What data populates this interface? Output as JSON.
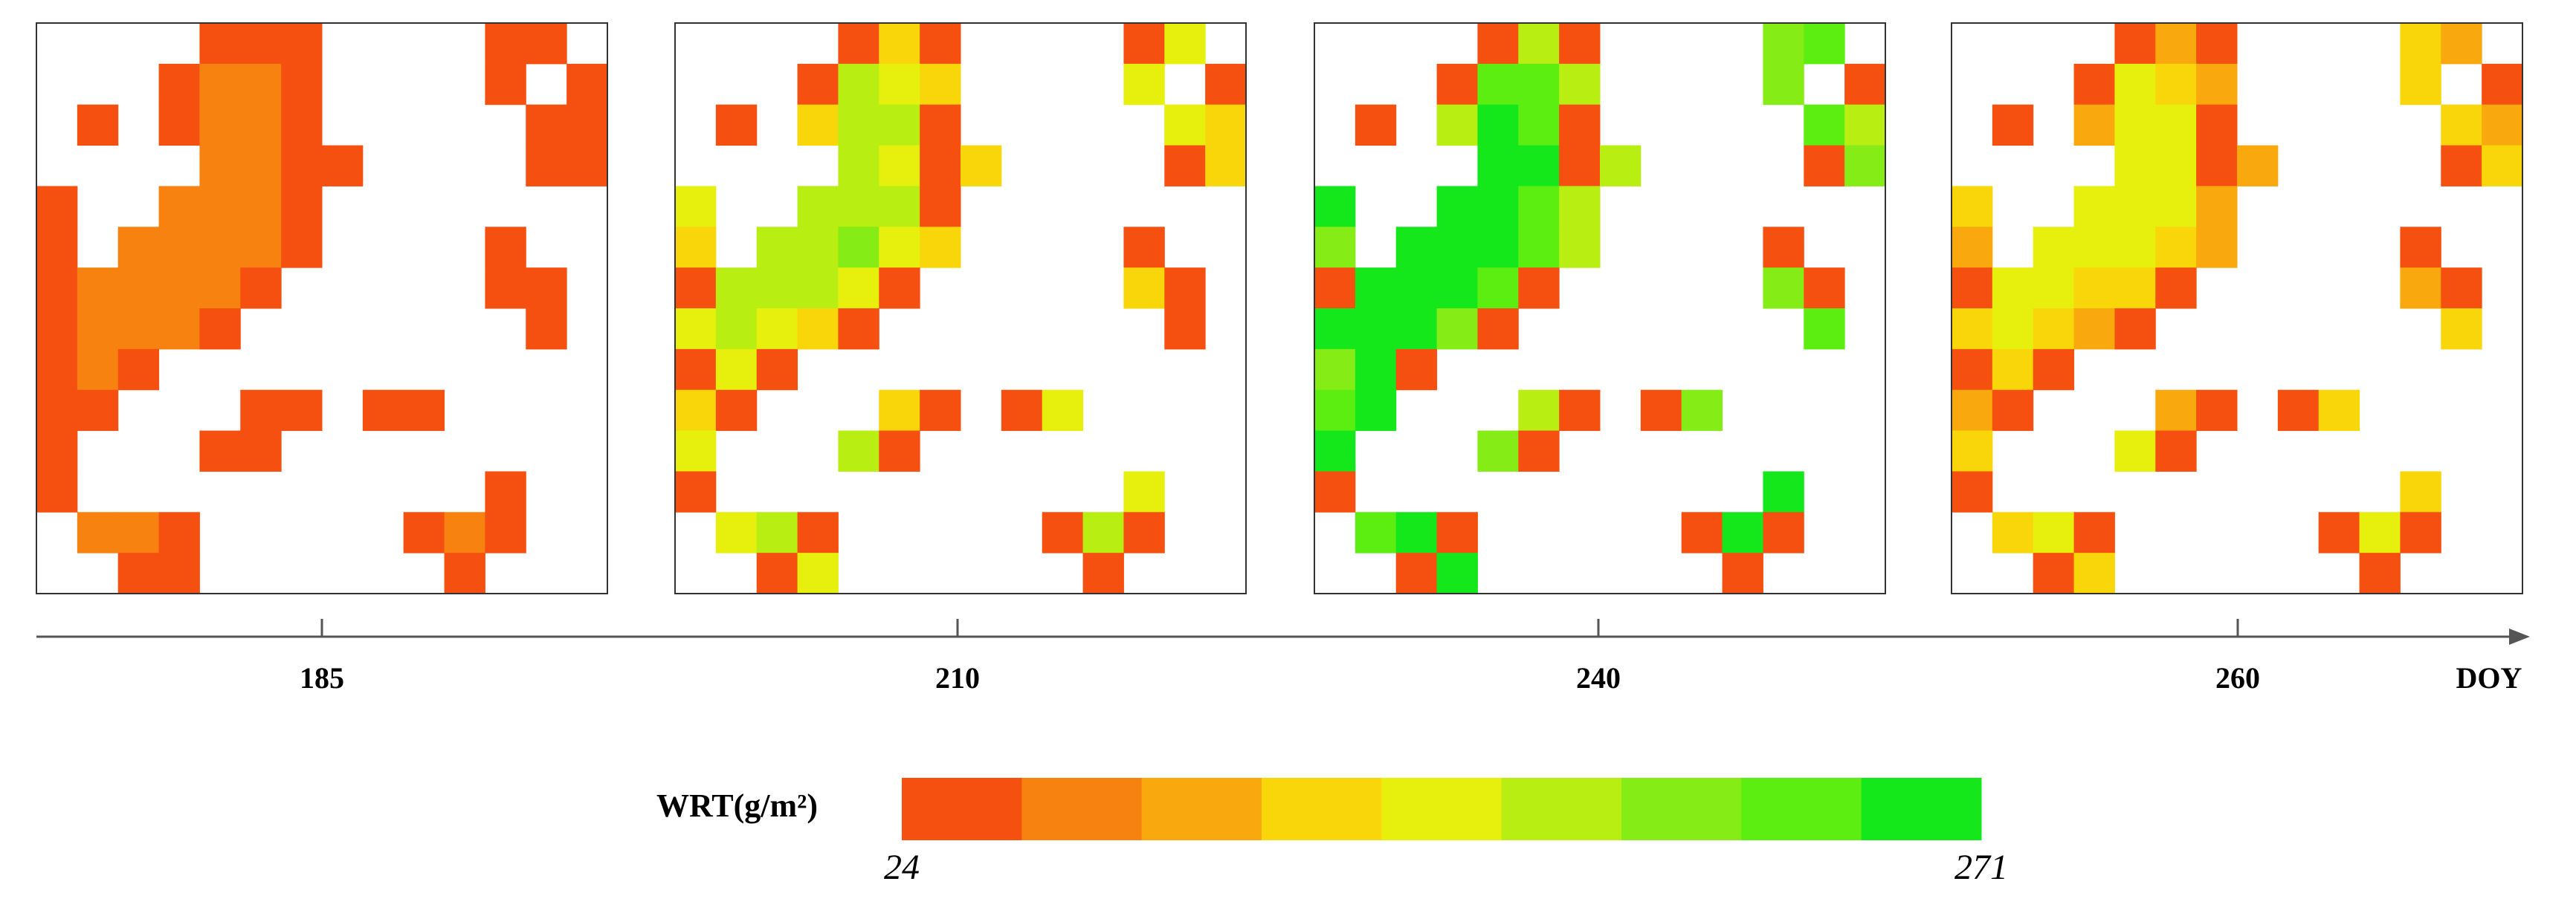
{
  "chart_data": {
    "type": "heatmap-panels",
    "axis_label": "DOY",
    "panels": [
      {
        "doy": 185,
        "cells": [
          [
            null,
            null,
            null,
            null,
            0,
            0,
            0,
            null,
            null,
            null,
            null,
            0,
            0,
            null
          ],
          [
            null,
            null,
            null,
            0,
            1,
            1,
            0,
            null,
            null,
            null,
            null,
            0,
            null,
            0
          ],
          [
            null,
            0,
            null,
            0,
            1,
            1,
            0,
            null,
            null,
            null,
            null,
            null,
            0,
            0
          ],
          [
            null,
            null,
            null,
            null,
            1,
            1,
            0,
            0,
            null,
            null,
            null,
            null,
            0,
            0
          ],
          [
            0,
            null,
            null,
            1,
            1,
            1,
            0,
            null,
            null,
            null,
            null,
            null,
            null,
            null
          ],
          [
            0,
            null,
            1,
            1,
            1,
            1,
            0,
            null,
            null,
            null,
            null,
            0,
            null,
            null
          ],
          [
            0,
            1,
            1,
            1,
            1,
            0,
            null,
            null,
            null,
            null,
            null,
            0,
            0,
            null
          ],
          [
            0,
            1,
            1,
            1,
            0,
            null,
            null,
            null,
            null,
            null,
            null,
            null,
            0,
            null
          ],
          [
            0,
            1,
            0,
            null,
            null,
            null,
            null,
            null,
            null,
            null,
            null,
            null,
            null,
            null
          ],
          [
            0,
            0,
            null,
            null,
            null,
            0,
            0,
            null,
            0,
            0,
            null,
            null,
            null,
            null
          ],
          [
            0,
            null,
            null,
            null,
            0,
            0,
            null,
            null,
            null,
            null,
            null,
            null,
            null,
            null
          ],
          [
            0,
            null,
            null,
            null,
            null,
            null,
            null,
            null,
            null,
            null,
            null,
            0,
            null,
            null
          ],
          [
            null,
            1,
            1,
            0,
            null,
            null,
            null,
            null,
            null,
            0,
            1,
            0,
            null,
            null
          ],
          [
            null,
            null,
            0,
            0,
            null,
            null,
            null,
            null,
            null,
            null,
            0,
            null,
            null,
            null
          ]
        ]
      },
      {
        "doy": 210,
        "cells": [
          [
            null,
            null,
            null,
            null,
            0,
            3,
            0,
            null,
            null,
            null,
            null,
            0,
            4,
            null
          ],
          [
            null,
            null,
            null,
            0,
            5,
            4,
            3,
            null,
            null,
            null,
            null,
            4,
            null,
            0
          ],
          [
            null,
            0,
            null,
            3,
            5,
            5,
            0,
            null,
            null,
            null,
            null,
            null,
            4,
            3
          ],
          [
            null,
            null,
            null,
            null,
            5,
            4,
            0,
            3,
            null,
            null,
            null,
            null,
            0,
            3
          ],
          [
            4,
            null,
            null,
            5,
            5,
            5,
            0,
            null,
            null,
            null,
            null,
            null,
            null,
            null
          ],
          [
            3,
            null,
            5,
            5,
            6,
            4,
            3,
            null,
            null,
            null,
            null,
            0,
            null,
            null
          ],
          [
            0,
            5,
            5,
            5,
            4,
            0,
            null,
            null,
            null,
            null,
            null,
            3,
            0,
            null
          ],
          [
            4,
            5,
            4,
            3,
            0,
            null,
            null,
            null,
            null,
            null,
            null,
            null,
            0,
            null
          ],
          [
            0,
            4,
            0,
            null,
            null,
            null,
            null,
            null,
            null,
            null,
            null,
            null,
            null,
            null
          ],
          [
            3,
            0,
            null,
            null,
            null,
            3,
            0,
            null,
            0,
            4,
            null,
            null,
            null,
            null
          ],
          [
            4,
            null,
            null,
            null,
            5,
            0,
            null,
            null,
            null,
            null,
            null,
            null,
            null,
            null
          ],
          [
            0,
            null,
            null,
            null,
            null,
            null,
            null,
            null,
            null,
            null,
            null,
            4,
            null,
            null
          ],
          [
            null,
            4,
            5,
            0,
            null,
            null,
            null,
            null,
            null,
            0,
            5,
            0,
            null,
            null
          ],
          [
            null,
            null,
            0,
            4,
            null,
            null,
            null,
            null,
            null,
            null,
            0,
            null,
            null,
            null
          ]
        ]
      },
      {
        "doy": 240,
        "cells": [
          [
            null,
            null,
            null,
            null,
            0,
            5,
            0,
            null,
            null,
            null,
            null,
            6,
            7,
            null
          ],
          [
            null,
            null,
            null,
            0,
            7,
            7,
            5,
            null,
            null,
            null,
            null,
            6,
            null,
            0
          ],
          [
            null,
            0,
            null,
            5,
            8,
            7,
            0,
            null,
            null,
            null,
            null,
            null,
            7,
            5
          ],
          [
            null,
            null,
            null,
            null,
            8,
            8,
            0,
            5,
            null,
            null,
            null,
            null,
            0,
            6
          ],
          [
            8,
            null,
            null,
            8,
            8,
            7,
            5,
            null,
            null,
            null,
            null,
            null,
            null,
            null
          ],
          [
            6,
            null,
            8,
            8,
            8,
            7,
            5,
            null,
            null,
            null,
            null,
            0,
            null,
            null
          ],
          [
            0,
            8,
            8,
            8,
            7,
            0,
            null,
            null,
            null,
            null,
            null,
            6,
            0,
            null
          ],
          [
            8,
            8,
            8,
            6,
            0,
            null,
            null,
            null,
            null,
            null,
            null,
            null,
            7,
            null
          ],
          [
            6,
            8,
            0,
            null,
            null,
            null,
            null,
            null,
            null,
            null,
            null,
            null,
            null,
            null
          ],
          [
            7,
            8,
            null,
            null,
            null,
            5,
            0,
            null,
            0,
            6,
            null,
            null,
            null,
            null
          ],
          [
            8,
            null,
            null,
            null,
            6,
            0,
            null,
            null,
            null,
            null,
            null,
            null,
            null,
            null
          ],
          [
            0,
            null,
            null,
            null,
            null,
            null,
            null,
            null,
            null,
            null,
            null,
            8,
            null,
            null
          ],
          [
            null,
            7,
            8,
            0,
            null,
            null,
            null,
            null,
            null,
            0,
            8,
            0,
            null,
            null
          ],
          [
            null,
            null,
            0,
            8,
            null,
            null,
            null,
            null,
            null,
            null,
            0,
            null,
            null,
            null
          ]
        ]
      },
      {
        "doy": 260,
        "cells": [
          [
            null,
            null,
            null,
            null,
            0,
            2,
            0,
            null,
            null,
            null,
            null,
            3,
            2,
            null
          ],
          [
            null,
            null,
            null,
            0,
            4,
            3,
            2,
            null,
            null,
            null,
            null,
            3,
            null,
            0
          ],
          [
            null,
            0,
            null,
            2,
            4,
            4,
            0,
            null,
            null,
            null,
            null,
            null,
            3,
            2
          ],
          [
            null,
            null,
            null,
            null,
            4,
            4,
            0,
            2,
            null,
            null,
            null,
            null,
            0,
            3
          ],
          [
            3,
            null,
            null,
            4,
            4,
            4,
            2,
            null,
            null,
            null,
            null,
            null,
            null,
            null
          ],
          [
            2,
            null,
            4,
            4,
            4,
            3,
            2,
            null,
            null,
            null,
            null,
            0,
            null,
            null
          ],
          [
            0,
            4,
            4,
            3,
            3,
            0,
            null,
            null,
            null,
            null,
            null,
            2,
            0,
            null
          ],
          [
            3,
            4,
            3,
            2,
            0,
            null,
            null,
            null,
            null,
            null,
            null,
            null,
            3,
            null
          ],
          [
            0,
            3,
            0,
            null,
            null,
            null,
            null,
            null,
            null,
            null,
            null,
            null,
            null,
            null
          ],
          [
            2,
            0,
            null,
            null,
            null,
            2,
            0,
            null,
            0,
            3,
            null,
            null,
            null,
            null
          ],
          [
            3,
            null,
            null,
            null,
            4,
            0,
            null,
            null,
            null,
            null,
            null,
            null,
            null,
            null
          ],
          [
            0,
            null,
            null,
            null,
            null,
            null,
            null,
            null,
            null,
            null,
            null,
            3,
            null,
            null
          ],
          [
            null,
            3,
            4,
            0,
            null,
            null,
            null,
            null,
            null,
            0,
            4,
            0,
            null,
            null
          ],
          [
            null,
            null,
            0,
            3,
            null,
            null,
            null,
            null,
            null,
            null,
            0,
            null,
            null,
            null
          ]
        ]
      }
    ],
    "colorbar": {
      "label": "WRT(g/m²)",
      "min": 24,
      "max": 271,
      "colors": [
        "#f5500f",
        "#f7820f",
        "#f9a90d",
        "#f9d60a",
        "#e6f00c",
        "#b8ee12",
        "#86ec16",
        "#5cee10",
        "#14e81a"
      ]
    }
  }
}
